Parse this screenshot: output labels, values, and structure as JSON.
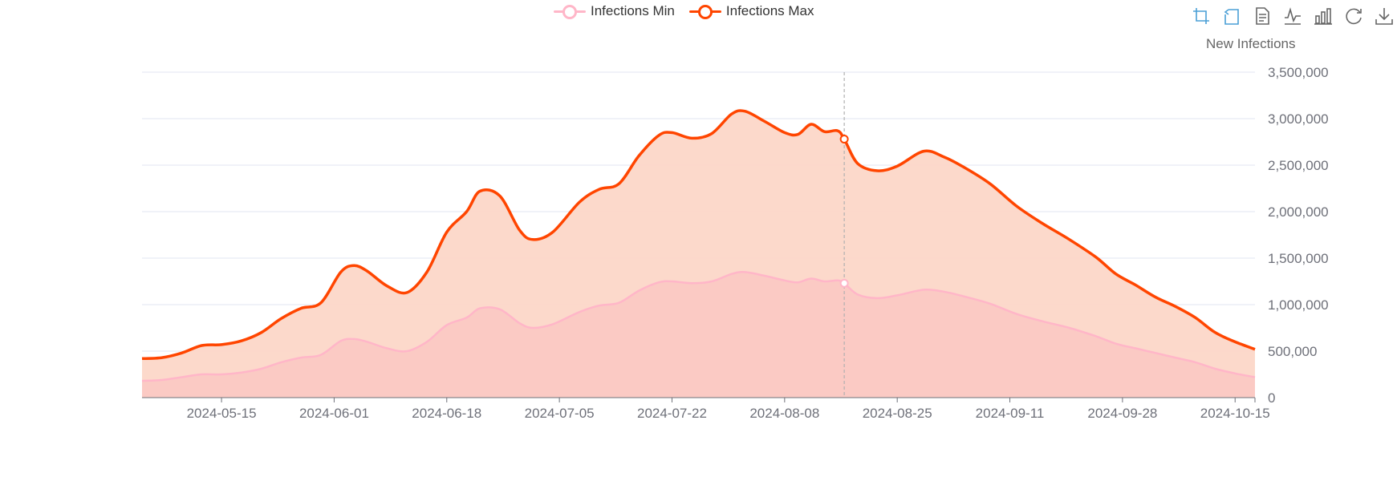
{
  "legend": {
    "min_label": "Infections Min",
    "max_label": "Infections Max"
  },
  "toolbox": {
    "caption": "New Infections",
    "tools": [
      {
        "name": "zoom-icon",
        "color": "#4a9fd6"
      },
      {
        "name": "zoom-reset-icon",
        "color": "#4a9fd6"
      },
      {
        "name": "data-view-icon",
        "color": "#666666"
      },
      {
        "name": "line-chart-icon",
        "color": "#666666"
      },
      {
        "name": "bar-chart-icon",
        "color": "#666666"
      },
      {
        "name": "restore-icon",
        "color": "#666666"
      },
      {
        "name": "save-image-icon",
        "color": "#666666"
      }
    ]
  },
  "colors": {
    "max_line": "#ff4500",
    "min_line": "#ffb6c8",
    "max_area": "#fcd7c8",
    "min_area": "#fbc9c3",
    "grid": "#e0e6f1",
    "axis": "#6e7079",
    "crosshair": "#b0b0b0"
  },
  "chart_data": {
    "type": "area",
    "x_type": "date",
    "xlim": [
      "2024-05-03",
      "2024-10-18"
    ],
    "ylim": [
      0,
      3500000
    ],
    "y_ticks": [
      0,
      500000,
      1000000,
      1500000,
      2000000,
      2500000,
      3000000,
      3500000
    ],
    "y_tick_labels": [
      "0",
      "500,000",
      "1,000,000",
      "1,500,000",
      "2,000,000",
      "2,500,000",
      "3,000,000",
      "3,500,000"
    ],
    "x_tick_labels": [
      "2024-05-15",
      "2024-06-01",
      "2024-06-18",
      "2024-07-05",
      "2024-07-22",
      "2024-08-08",
      "2024-08-25",
      "2024-09-11",
      "2024-09-28",
      "2024-10-15"
    ],
    "y_axis_position": "right",
    "grid": true,
    "legend_position": "top-center",
    "tooltip_date": "2024-08-17",
    "series": [
      {
        "name": "Infections Max",
        "points": [
          [
            "2024-05-03",
            420000
          ],
          [
            "2024-05-06",
            430000
          ],
          [
            "2024-05-09",
            480000
          ],
          [
            "2024-05-12",
            560000
          ],
          [
            "2024-05-15",
            570000
          ],
          [
            "2024-05-18",
            610000
          ],
          [
            "2024-05-21",
            700000
          ],
          [
            "2024-05-24",
            850000
          ],
          [
            "2024-05-27",
            960000
          ],
          [
            "2024-05-30",
            1020000
          ],
          [
            "2024-06-02",
            1350000
          ],
          [
            "2024-06-04",
            1420000
          ],
          [
            "2024-06-06",
            1360000
          ],
          [
            "2024-06-09",
            1200000
          ],
          [
            "2024-06-12",
            1130000
          ],
          [
            "2024-06-15",
            1350000
          ],
          [
            "2024-06-18",
            1780000
          ],
          [
            "2024-06-21",
            2000000
          ],
          [
            "2024-06-23",
            2220000
          ],
          [
            "2024-06-26",
            2170000
          ],
          [
            "2024-06-29",
            1800000
          ],
          [
            "2024-07-01",
            1700000
          ],
          [
            "2024-07-04",
            1780000
          ],
          [
            "2024-07-08",
            2100000
          ],
          [
            "2024-07-11",
            2240000
          ],
          [
            "2024-07-14",
            2300000
          ],
          [
            "2024-07-17",
            2600000
          ],
          [
            "2024-07-20",
            2820000
          ],
          [
            "2024-07-22",
            2850000
          ],
          [
            "2024-07-25",
            2790000
          ],
          [
            "2024-07-28",
            2840000
          ],
          [
            "2024-07-31",
            3050000
          ],
          [
            "2024-08-02",
            3080000
          ],
          [
            "2024-08-05",
            2970000
          ],
          [
            "2024-08-08",
            2850000
          ],
          [
            "2024-08-10",
            2830000
          ],
          [
            "2024-08-12",
            2940000
          ],
          [
            "2024-08-14",
            2860000
          ],
          [
            "2024-08-16",
            2870000
          ],
          [
            "2024-08-17",
            2780000
          ],
          [
            "2024-08-19",
            2520000
          ],
          [
            "2024-08-22",
            2440000
          ],
          [
            "2024-08-25",
            2490000
          ],
          [
            "2024-08-29",
            2650000
          ],
          [
            "2024-09-01",
            2590000
          ],
          [
            "2024-09-04",
            2480000
          ],
          [
            "2024-09-08",
            2300000
          ],
          [
            "2024-09-12",
            2060000
          ],
          [
            "2024-09-16",
            1870000
          ],
          [
            "2024-09-20",
            1700000
          ],
          [
            "2024-09-24",
            1510000
          ],
          [
            "2024-09-27",
            1330000
          ],
          [
            "2024-09-30",
            1210000
          ],
          [
            "2024-10-03",
            1080000
          ],
          [
            "2024-10-06",
            980000
          ],
          [
            "2024-10-09",
            860000
          ],
          [
            "2024-10-12",
            700000
          ],
          [
            "2024-10-15",
            600000
          ],
          [
            "2024-10-18",
            520000
          ]
        ]
      },
      {
        "name": "Infections Min",
        "points": [
          [
            "2024-05-03",
            180000
          ],
          [
            "2024-05-06",
            190000
          ],
          [
            "2024-05-09",
            220000
          ],
          [
            "2024-05-12",
            250000
          ],
          [
            "2024-05-15",
            250000
          ],
          [
            "2024-05-18",
            270000
          ],
          [
            "2024-05-21",
            310000
          ],
          [
            "2024-05-24",
            380000
          ],
          [
            "2024-05-27",
            430000
          ],
          [
            "2024-05-30",
            460000
          ],
          [
            "2024-06-02",
            610000
          ],
          [
            "2024-06-04",
            630000
          ],
          [
            "2024-06-06",
            600000
          ],
          [
            "2024-06-09",
            530000
          ],
          [
            "2024-06-12",
            500000
          ],
          [
            "2024-06-15",
            600000
          ],
          [
            "2024-06-18",
            780000
          ],
          [
            "2024-06-21",
            860000
          ],
          [
            "2024-06-23",
            960000
          ],
          [
            "2024-06-26",
            950000
          ],
          [
            "2024-06-29",
            800000
          ],
          [
            "2024-07-01",
            750000
          ],
          [
            "2024-07-04",
            790000
          ],
          [
            "2024-07-08",
            920000
          ],
          [
            "2024-07-11",
            990000
          ],
          [
            "2024-07-14",
            1020000
          ],
          [
            "2024-07-17",
            1150000
          ],
          [
            "2024-07-20",
            1240000
          ],
          [
            "2024-07-22",
            1250000
          ],
          [
            "2024-07-25",
            1230000
          ],
          [
            "2024-07-28",
            1250000
          ],
          [
            "2024-07-31",
            1330000
          ],
          [
            "2024-08-02",
            1350000
          ],
          [
            "2024-08-05",
            1310000
          ],
          [
            "2024-08-08",
            1260000
          ],
          [
            "2024-08-10",
            1240000
          ],
          [
            "2024-08-12",
            1280000
          ],
          [
            "2024-08-14",
            1250000
          ],
          [
            "2024-08-16",
            1260000
          ],
          [
            "2024-08-17",
            1230000
          ],
          [
            "2024-08-19",
            1110000
          ],
          [
            "2024-08-22",
            1070000
          ],
          [
            "2024-08-25",
            1100000
          ],
          [
            "2024-08-29",
            1160000
          ],
          [
            "2024-09-01",
            1140000
          ],
          [
            "2024-09-04",
            1090000
          ],
          [
            "2024-09-08",
            1010000
          ],
          [
            "2024-09-12",
            900000
          ],
          [
            "2024-09-16",
            820000
          ],
          [
            "2024-09-20",
            750000
          ],
          [
            "2024-09-24",
            660000
          ],
          [
            "2024-09-27",
            580000
          ],
          [
            "2024-09-30",
            530000
          ],
          [
            "2024-10-03",
            480000
          ],
          [
            "2024-10-06",
            430000
          ],
          [
            "2024-10-09",
            380000
          ],
          [
            "2024-10-12",
            310000
          ],
          [
            "2024-10-15",
            260000
          ],
          [
            "2024-10-18",
            220000
          ]
        ]
      }
    ]
  }
}
